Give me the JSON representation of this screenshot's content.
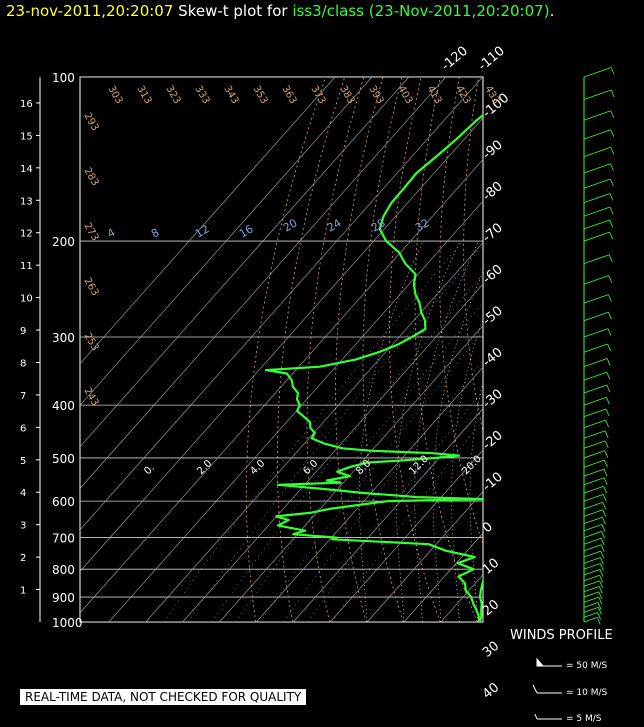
{
  "header": {
    "date_time": "23-nov-2011,20:20:07",
    "plot_label": "Skew-t plot for",
    "source": "iss3/class",
    "source_time": "(23-Nov-2011,20:20:07)",
    "period": "."
  },
  "notice": "REAL-TIME DATA, NOT CHECKED FOR QUALITY",
  "winds_profile": {
    "title": "WINDS PROFILE",
    "legend": [
      "= 50 M/S",
      "= 10 M/S",
      "= 5 M/S"
    ]
  },
  "colors": {
    "background": "#000000",
    "profile": "#33ff33",
    "grid": "#ffffff",
    "dry_adiabat": "#d8a070",
    "mixing_ratio": "#7fa3d8",
    "moist_adiabat": "#ffffff"
  },
  "chart_data": {
    "type": "line",
    "title": "Skew-t plot",
    "pressure_levels_hpa": [
      100,
      200,
      300,
      400,
      500,
      600,
      700,
      800,
      900,
      1000
    ],
    "altitude_km_ticks": [
      1,
      2,
      3,
      4,
      5,
      6,
      7,
      8,
      9,
      10,
      11,
      12,
      13,
      14,
      15,
      16
    ],
    "temperature_isotherm_labels_c": [
      -120,
      -110,
      -100,
      -90,
      -80,
      -70,
      -60,
      -50,
      -40,
      -30,
      -20,
      -10,
      0,
      10,
      20,
      30,
      40
    ],
    "dry_adiabat_labels_k": [
      243,
      253,
      263,
      273,
      283,
      293,
      303,
      313,
      323,
      333,
      343,
      353,
      363,
      373,
      383,
      393,
      403,
      413,
      423,
      433
    ],
    "mixing_ratio_labels": [
      4,
      8,
      12,
      16,
      20,
      24,
      28,
      32
    ],
    "moist_adiabat_labels": [
      "0.",
      "2.0",
      "4.0",
      "6.0",
      "8.0",
      "12.0",
      "20.0"
    ],
    "ylim_hpa": [
      1000,
      100
    ],
    "series": [
      {
        "name": "temperature",
        "points": [
          [
            1000,
            20.6
          ],
          [
            975,
            19.5
          ],
          [
            950,
            18.0
          ],
          [
            925,
            16.6
          ],
          [
            900,
            14.6
          ],
          [
            875,
            13.2
          ],
          [
            850,
            12.0
          ],
          [
            825,
            10.8
          ],
          [
            800,
            9.6
          ],
          [
            775,
            8.3
          ],
          [
            750,
            7.2
          ],
          [
            725,
            6.0
          ],
          [
            700,
            4.8
          ],
          [
            675,
            3.3
          ],
          [
            650,
            1.7
          ],
          [
            625,
            0.0
          ],
          [
            600,
            -1.8
          ],
          [
            575,
            -3.5
          ],
          [
            550,
            -5.3
          ],
          [
            525,
            -7.2
          ],
          [
            500,
            -9.3
          ],
          [
            475,
            -11.6
          ],
          [
            450,
            -14.0
          ],
          [
            425,
            -16.6
          ],
          [
            400,
            -19.4
          ],
          [
            375,
            -22.5
          ],
          [
            350,
            -25.7
          ],
          [
            325,
            -29.3
          ],
          [
            300,
            -33.2
          ],
          [
            275,
            -37.4
          ],
          [
            250,
            -42.1
          ],
          [
            225,
            -47.3
          ],
          [
            200,
            -52.4
          ],
          [
            190,
            -54.6
          ],
          [
            180,
            -56.9
          ],
          [
            170,
            -59.5
          ],
          [
            160,
            -62.4
          ],
          [
            150,
            -65.5
          ],
          [
            140,
            -68.8
          ],
          [
            130,
            -72.3
          ],
          [
            120,
            -76.2
          ],
          [
            110,
            -80.4
          ],
          [
            100,
            -84.5
          ]
        ]
      },
      {
        "name": "dewpoint",
        "points": [
          [
            1000,
            20.3
          ],
          [
            975,
            18.8
          ],
          [
            950,
            16.7
          ],
          [
            925,
            14.3
          ],
          [
            900,
            12.2
          ],
          [
            875,
            9.1
          ],
          [
            850,
            7.3
          ],
          [
            825,
            3.8
          ],
          [
            800,
            6.1
          ],
          [
            780,
            0.4
          ],
          [
            760,
            3.5
          ],
          [
            740,
            -5.9
          ],
          [
            720,
            -12.0
          ],
          [
            705,
            -39.4
          ],
          [
            700,
            -38.6
          ],
          [
            690,
            -51.2
          ],
          [
            680,
            -48.8
          ],
          [
            665,
            -57.4
          ],
          [
            650,
            -55.8
          ],
          [
            640,
            -60.1
          ],
          [
            630,
            -51.4
          ],
          [
            620,
            -47.5
          ],
          [
            600,
            -33.5
          ],
          [
            595,
            -7.7
          ],
          [
            590,
            -26.4
          ],
          [
            580,
            -41.6
          ],
          [
            570,
            -53.8
          ],
          [
            560,
            -67.2
          ],
          [
            555,
            -50.7
          ],
          [
            550,
            -55.0
          ],
          [
            540,
            -49.8
          ],
          [
            530,
            -54.3
          ],
          [
            520,
            -52.1
          ],
          [
            510,
            -48.4
          ],
          [
            505,
            -39.0
          ],
          [
            500,
            -30.8
          ],
          [
            495,
            -25.2
          ],
          [
            490,
            -32.9
          ],
          [
            485,
            -50.4
          ],
          [
            480,
            -58.5
          ],
          [
            470,
            -64.9
          ],
          [
            460,
            -69.3
          ],
          [
            450,
            -69.7
          ],
          [
            440,
            -72.2
          ],
          [
            430,
            -73.6
          ],
          [
            420,
            -76.6
          ],
          [
            410,
            -79.8
          ],
          [
            400,
            -80.5
          ],
          [
            390,
            -82.7
          ],
          [
            380,
            -83.9
          ],
          [
            370,
            -86.8
          ],
          [
            360,
            -88.7
          ],
          [
            350,
            -91.6
          ],
          [
            345,
            -98.1
          ],
          [
            340,
            -84.3
          ],
          [
            330,
            -76.4
          ],
          [
            320,
            -71.9
          ],
          [
            310,
            -68.6
          ],
          [
            300,
            -66.5
          ],
          [
            290,
            -64.8
          ],
          [
            280,
            -66.9
          ],
          [
            270,
            -70.0
          ],
          [
            260,
            -72.6
          ],
          [
            250,
            -76.0
          ],
          [
            240,
            -78.7
          ],
          [
            230,
            -80.7
          ],
          [
            220,
            -86.0
          ],
          [
            210,
            -90.3
          ],
          [
            200,
            -96.6
          ],
          [
            190,
            -101.3
          ],
          [
            180,
            -103.3
          ],
          [
            170,
            -104.4
          ],
          [
            160,
            -104.5
          ],
          [
            150,
            -104.8
          ],
          [
            140,
            -103.4
          ],
          [
            130,
            -102.1
          ],
          [
            120,
            -101.2
          ],
          [
            110,
            -99.1
          ],
          [
            100,
            -98.5
          ]
        ]
      }
    ],
    "winds": [
      [
        1000,
        8
      ],
      [
        980,
        9
      ],
      [
        960,
        11
      ],
      [
        940,
        10
      ],
      [
        920,
        12
      ],
      [
        900,
        12
      ],
      [
        880,
        13
      ],
      [
        860,
        14
      ],
      [
        840,
        14
      ],
      [
        820,
        15
      ],
      [
        800,
        16
      ],
      [
        780,
        16
      ],
      [
        760,
        17
      ],
      [
        740,
        18
      ],
      [
        720,
        18
      ],
      [
        700,
        19
      ],
      [
        680,
        20
      ],
      [
        660,
        21
      ],
      [
        640,
        22
      ],
      [
        620,
        22
      ],
      [
        600,
        23
      ],
      [
        580,
        24
      ],
      [
        560,
        25
      ],
      [
        540,
        25
      ],
      [
        520,
        26
      ],
      [
        500,
        27
      ],
      [
        480,
        28
      ],
      [
        460,
        28
      ],
      [
        440,
        29
      ],
      [
        420,
        30
      ],
      [
        400,
        31
      ],
      [
        380,
        32
      ],
      [
        360,
        32
      ],
      [
        340,
        33
      ],
      [
        320,
        34
      ],
      [
        300,
        35
      ],
      [
        280,
        36
      ],
      [
        260,
        36
      ],
      [
        240,
        37
      ],
      [
        220,
        38
      ],
      [
        200,
        39
      ],
      [
        190,
        39
      ],
      [
        180,
        40
      ],
      [
        170,
        40
      ],
      [
        160,
        41
      ],
      [
        150,
        41
      ],
      [
        140,
        42
      ],
      [
        130,
        42
      ],
      [
        120,
        42
      ],
      [
        110,
        43
      ],
      [
        100,
        43
      ]
    ]
  }
}
